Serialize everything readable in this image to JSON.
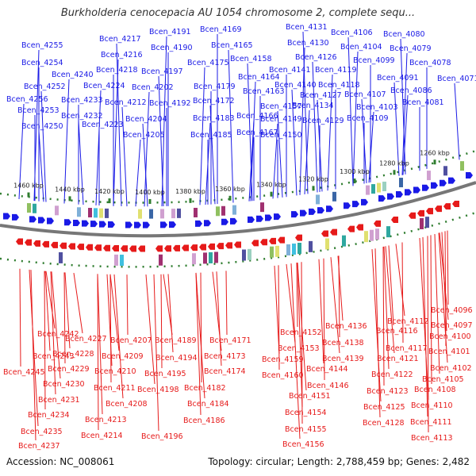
{
  "title": "Burkholderia cenocepacia AU 1054 chromosome 2, complete sequ...",
  "footer": {
    "accession": "Accession: NC_008061",
    "summary": "Topology: circular; Length: 2,788,459 bp; Genes: 2,482"
  },
  "colors": {
    "forward": "#1a1ae6",
    "reverse": "#e61a1a",
    "tick": "#2f7d2f",
    "backbone": "#777777"
  },
  "scale_labels": [
    "1460 kbp",
    "1440 kbp",
    "1420 kbp",
    "1400 kbp",
    "1380 kbp",
    "1360 kbp",
    "1340 kbp",
    "1320 kbp",
    "1300 kbp",
    "1280 kbp",
    "1260 kbp"
  ],
  "forward_genes": [
    "Bcen_4255",
    "Bcen_4254",
    "Bcen_4252",
    "Bcen_4256",
    "Bcen_4253",
    "Bcen_4250",
    "Bcen_4240",
    "Bcen_4233",
    "Bcen_4232",
    "Bcen_4224",
    "Bcen_4223",
    "Bcen_4217",
    "Bcen_4216",
    "Bcen_4218",
    "Bcen_4212",
    "Bcen_4191",
    "Bcen_4190",
    "Bcen_4197",
    "Bcen_4202",
    "Bcen_4192",
    "Bcen_4204",
    "Bcen_4205",
    "Bcen_4169",
    "Bcen_4165",
    "Bcen_4175",
    "Bcen_4179",
    "Bcen_4172",
    "Bcen_4183",
    "Bcen_4185",
    "Bcen_4158",
    "Bcen_4164",
    "Bcen_4163",
    "Bcen_4157",
    "Bcen_4166",
    "Bcen_4167",
    "Bcen_4131",
    "Bcen_4130",
    "Bcen_4141",
    "Bcen_4140",
    "Bcen_4149",
    "Bcen_4150",
    "Bcen_4126",
    "Bcen_4119",
    "Bcen_4118",
    "Bcen_4127",
    "Bcen_4134",
    "Bcen_4129",
    "Bcen_4106",
    "Bcen_4104",
    "Bcen_4099",
    "Bcen_4107",
    "Bcen_4103",
    "Bcen_4109",
    "Bcen_4080",
    "Bcen_4079",
    "Bcen_4078",
    "Bcen_4091",
    "Bcen_4086",
    "Bcen_4081",
    "Bcen_4071"
  ],
  "reverse_genes": [
    "Bcen_4242",
    "Bcen_4243",
    "Bcen_4245",
    "Bcen_4227",
    "Bcen_4228",
    "Bcen_4229",
    "Bcen_4230",
    "Bcen_4231",
    "Bcen_4234",
    "Bcen_4235",
    "Bcen_4237",
    "Bcen_4207",
    "Bcen_4209",
    "Bcen_4210",
    "Bcen_4211",
    "Bcen_4208",
    "Bcen_4213",
    "Bcen_4214",
    "Bcen_4189",
    "Bcen_4194",
    "Bcen_4195",
    "Bcen_4198",
    "Bcen_4196",
    "Bcen_4171",
    "Bcen_4173",
    "Bcen_4174",
    "Bcen_4182",
    "Bcen_4184",
    "Bcen_4186",
    "Bcen_4152",
    "Bcen_4153",
    "Bcen_4159",
    "Bcen_4160",
    "Bcen_4151",
    "Bcen_4154",
    "Bcen_4155",
    "Bcen_4156",
    "Bcen_4136",
    "Bcen_4138",
    "Bcen_4139",
    "Bcen_4144",
    "Bcen_4146",
    "Bcen_4112",
    "Bcen_4116",
    "Bcen_4117",
    "Bcen_4121",
    "Bcen_4122",
    "Bcen_4123",
    "Bcen_4125",
    "Bcen_4128",
    "Bcen_4096",
    "Bcen_4097",
    "Bcen_4100",
    "Bcen_4101",
    "Bcen_4102",
    "Bcen_4105",
    "Bcen_4108",
    "Bcen_4110",
    "Bcen_4111",
    "Bcen_4113"
  ]
}
